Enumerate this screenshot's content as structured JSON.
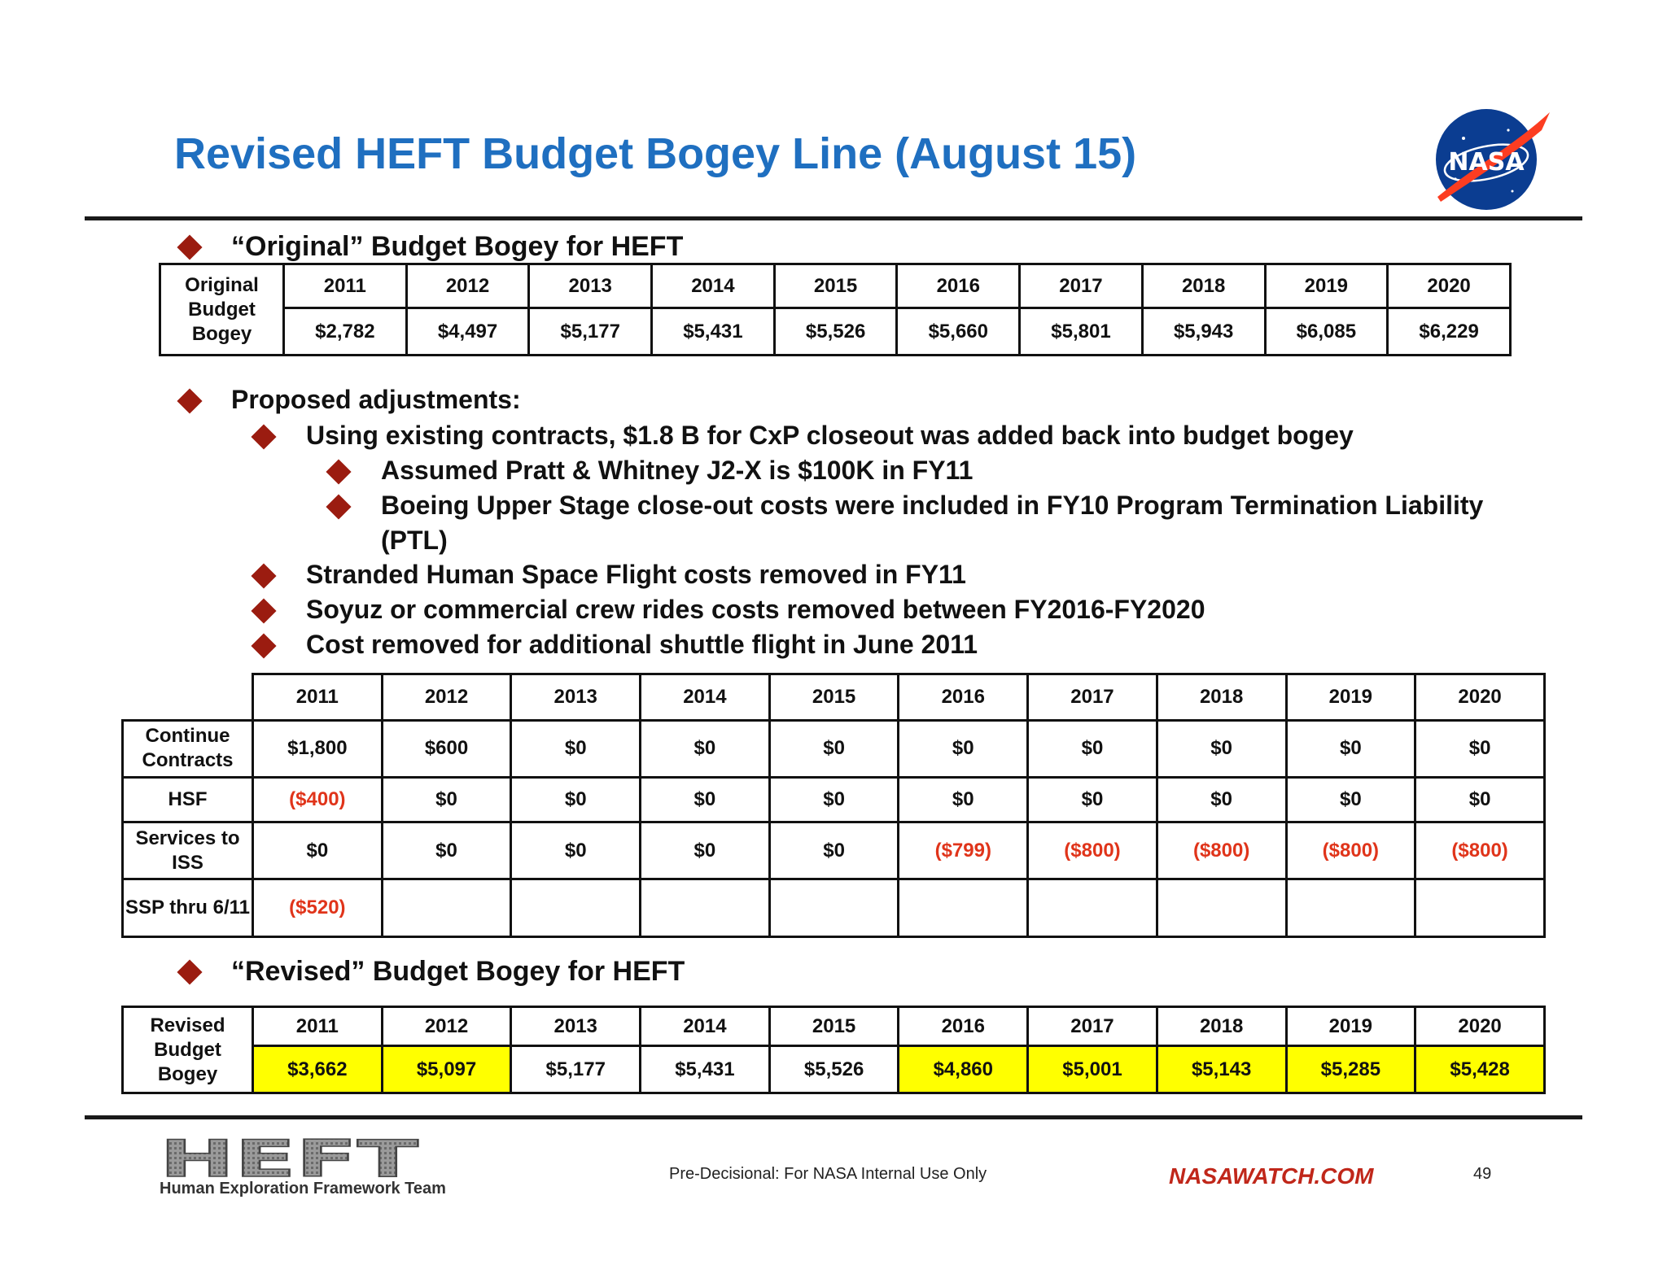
{
  "title": "Revised HEFT Budget Bogey Line (August 15)",
  "logo": {
    "text": "NASA",
    "icon": "nasa-meatball-icon"
  },
  "section_original": {
    "heading": "“Original” Budget Bogey for HEFT",
    "row_header": "Original Budget Bogey",
    "years": [
      "2011",
      "2012",
      "2013",
      "2014",
      "2015",
      "2016",
      "2017",
      "2018",
      "2019",
      "2020"
    ],
    "values": [
      "$2,782",
      "$4,497",
      "$5,177",
      "$5,431",
      "$5,526",
      "$5,660",
      "$5,801",
      "$5,943",
      "$6,085",
      "$6,229"
    ]
  },
  "adjustments": {
    "heading": "Proposed adjustments:",
    "items": [
      "Using existing contracts, $1.8 B for CxP closeout was added back into budget bogey",
      "Assumed Pratt & Whitney J2-X is $100K in FY11",
      "Boeing Upper Stage close-out costs were included in FY10 Program Termination Liability",
      "(PTL)",
      "Stranded Human Space Flight costs removed in FY11",
      "Soyuz or commercial crew rides costs removed between FY2016-FY2020",
      "Cost removed for additional shuttle flight in June 2011"
    ]
  },
  "adjust_table": {
    "years": [
      "2011",
      "2012",
      "2013",
      "2014",
      "2015",
      "2016",
      "2017",
      "2018",
      "2019",
      "2020"
    ],
    "rows": [
      {
        "label": "Continue Contracts",
        "values": [
          "$1,800",
          "$600",
          "$0",
          "$0",
          "$0",
          "$0",
          "$0",
          "$0",
          "$0",
          "$0"
        ]
      },
      {
        "label": "HSF",
        "values": [
          "($400)",
          "$0",
          "$0",
          "$0",
          "$0",
          "$0",
          "$0",
          "$0",
          "$0",
          "$0"
        ]
      },
      {
        "label": "Services to ISS",
        "values": [
          "$0",
          "$0",
          "$0",
          "$0",
          "$0",
          "($799)",
          "($800)",
          "($800)",
          "($800)",
          "($800)"
        ]
      },
      {
        "label": "SSP thru 6/11",
        "values": [
          "($520)",
          "",
          "",
          "",
          "",
          "",
          "",
          "",
          "",
          ""
        ]
      }
    ]
  },
  "section_revised": {
    "heading": "“Revised” Budget Bogey for HEFT",
    "row_header": "Revised Budget Bogey",
    "years": [
      "2011",
      "2012",
      "2013",
      "2014",
      "2015",
      "2016",
      "2017",
      "2018",
      "2019",
      "2020"
    ],
    "values": [
      "$3,662",
      "$5,097",
      "$5,177",
      "$5,431",
      "$5,526",
      "$4,860",
      "$5,001",
      "$5,143",
      "$5,285",
      "$5,428"
    ]
  },
  "footer": {
    "heft_logo_text": "HEFT",
    "heft_caption": "Human Exploration Framework Team",
    "notice": "Pre-Decisional: For NASA Internal Use Only",
    "watermark": "NASAWATCH.COM",
    "page_number": "49"
  }
}
